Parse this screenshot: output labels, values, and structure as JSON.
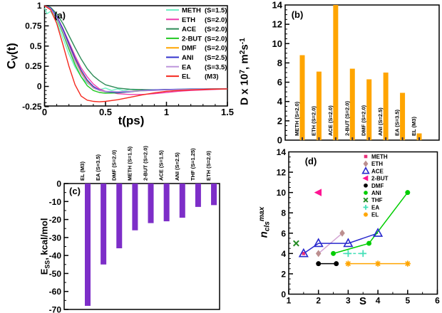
{
  "figure": {
    "background": "#ffffff",
    "frame_color": "#000000",
    "panel_letters": [
      "(a)",
      "(b)",
      "(c)",
      "(d)"
    ]
  },
  "chart_data": [
    {
      "id": "a",
      "type": "line",
      "label": "(a)",
      "xlabel": "t(ps)",
      "ylabel": "C_V(t)",
      "ylabel_parts": [
        {
          "t": "C"
        },
        {
          "t": "V",
          "sub": 1
        },
        {
          "t": "(t)"
        }
      ],
      "xlim": [
        0,
        1.5
      ],
      "ylim": [
        -0.25,
        1
      ],
      "xticks": [
        0,
        0.5,
        1,
        1.5
      ],
      "xtick_labels": [
        "0",
        "0.5",
        "1",
        "1.5"
      ],
      "yticks": [
        1,
        0.75,
        0.5,
        0.25,
        0,
        -0.25
      ],
      "ytick_labels": [
        "1",
        "0.75",
        "0.5",
        "0.25",
        "0",
        "-0.25"
      ],
      "legend_position": "top-right",
      "series": [
        {
          "name": "METH",
          "s_label": "(S=1.5)",
          "color": "#6FF0C4",
          "x": [
            0,
            0.02,
            0.05,
            0.08,
            0.1,
            0.13,
            0.16,
            0.2,
            0.25,
            0.3,
            0.35,
            0.4,
            0.45,
            0.5,
            0.55,
            0.6,
            0.65,
            0.7,
            0.75,
            0.8,
            0.85,
            0.9,
            1.0,
            1.1,
            1.2,
            1.35,
            1.5
          ],
          "y": [
            0.97,
            0.9,
            0.93,
            0.85,
            0.8,
            0.68,
            0.56,
            0.4,
            0.24,
            0.12,
            0.04,
            -0.01,
            -0.04,
            -0.02,
            -0.05,
            -0.03,
            -0.055,
            -0.035,
            -0.05,
            -0.04,
            -0.05,
            -0.045,
            -0.04,
            -0.035,
            -0.03,
            -0.03,
            -0.028
          ]
        },
        {
          "name": "ETH",
          "s_label": "(S=2.0)",
          "color": "#EE3FAE",
          "x": [
            0,
            0.05,
            0.1,
            0.15,
            0.2,
            0.25,
            0.3,
            0.35,
            0.4,
            0.45,
            0.5,
            0.6,
            0.7,
            0.8,
            0.9,
            1.0,
            1.1,
            1.2,
            1.35,
            1.5
          ],
          "y": [
            1,
            0.97,
            0.87,
            0.72,
            0.55,
            0.38,
            0.23,
            0.12,
            0.03,
            -0.03,
            -0.06,
            -0.09,
            -0.1,
            -0.1,
            -0.09,
            -0.075,
            -0.06,
            -0.05,
            -0.04,
            -0.032
          ]
        },
        {
          "name": "ACE",
          "s_label": "(S=2.0)",
          "color": "#2E8B57",
          "x": [
            0,
            0.05,
            0.1,
            0.15,
            0.2,
            0.25,
            0.3,
            0.35,
            0.4,
            0.45,
            0.5,
            0.6,
            0.7,
            0.8,
            0.9,
            1.0,
            1.1,
            1.2,
            1.35,
            1.5
          ],
          "y": [
            1,
            0.98,
            0.9,
            0.78,
            0.63,
            0.48,
            0.34,
            0.22,
            0.13,
            0.07,
            0.02,
            -0.02,
            -0.035,
            -0.04,
            -0.042,
            -0.04,
            -0.038,
            -0.035,
            -0.032,
            -0.03
          ]
        },
        {
          "name": "2-BUT",
          "s_label": "(S=2.0)",
          "color": "#21C821",
          "x": [
            0,
            0.05,
            0.1,
            0.15,
            0.2,
            0.25,
            0.3,
            0.35,
            0.4,
            0.45,
            0.5,
            0.6,
            0.7,
            0.8,
            0.9,
            1.0,
            1.1,
            1.2,
            1.35,
            1.5
          ],
          "y": [
            1,
            0.96,
            0.84,
            0.66,
            0.46,
            0.27,
            0.12,
            0.01,
            -0.05,
            -0.075,
            -0.085,
            -0.08,
            -0.065,
            -0.055,
            -0.048,
            -0.042,
            -0.038,
            -0.035,
            -0.032,
            -0.03
          ]
        },
        {
          "name": "DMF",
          "s_label": "(S=2.0)",
          "color": "#FFA500",
          "x": [
            0,
            0.05,
            0.1,
            0.15,
            0.2,
            0.25,
            0.3,
            0.35,
            0.4,
            0.45,
            0.5,
            0.6,
            0.7,
            0.8,
            0.9,
            1.0,
            1.1,
            1.2,
            1.35,
            1.5
          ],
          "y": [
            1,
            0.97,
            0.86,
            0.7,
            0.52,
            0.34,
            0.18,
            0.07,
            -0.01,
            -0.05,
            -0.065,
            -0.07,
            -0.06,
            -0.05,
            -0.045,
            -0.04,
            -0.037,
            -0.034,
            -0.031,
            -0.03
          ]
        },
        {
          "name": "ANI",
          "s_label": "(S=2.5)",
          "color": "#3333CC",
          "x": [
            0,
            0.05,
            0.1,
            0.15,
            0.2,
            0.25,
            0.3,
            0.35,
            0.4,
            0.45,
            0.5,
            0.6,
            0.7,
            0.8,
            0.9,
            1.0,
            1.1,
            1.2,
            1.35,
            1.5
          ],
          "y": [
            1,
            0.97,
            0.87,
            0.71,
            0.53,
            0.35,
            0.2,
            0.08,
            0,
            -0.045,
            -0.065,
            -0.075,
            -0.065,
            -0.05,
            -0.042,
            -0.038,
            -0.035,
            -0.033,
            -0.031,
            -0.03
          ]
        },
        {
          "name": "EA",
          "s_label": "(S=3.5)",
          "color": "#BD96DC",
          "x": [
            0,
            0.05,
            0.1,
            0.15,
            0.2,
            0.25,
            0.3,
            0.35,
            0.4,
            0.45,
            0.5,
            0.6,
            0.7,
            0.8,
            0.9,
            1.0,
            1.1,
            1.2,
            1.35,
            1.5
          ],
          "y": [
            1,
            0.96,
            0.85,
            0.68,
            0.49,
            0.31,
            0.16,
            0.05,
            -0.02,
            -0.05,
            -0.06,
            -0.065,
            -0.06,
            -0.055,
            -0.05,
            -0.045,
            -0.04,
            -0.037,
            -0.033,
            -0.03
          ]
        },
        {
          "name": "EL",
          "s_label": "(M3)",
          "color": "#F5281E",
          "x": [
            0,
            0.05,
            0.1,
            0.15,
            0.2,
            0.25,
            0.3,
            0.35,
            0.4,
            0.45,
            0.5,
            0.6,
            0.7,
            0.8,
            0.9,
            1.0,
            1.1,
            1.2,
            1.35,
            1.5
          ],
          "y": [
            1,
            0.95,
            0.78,
            0.52,
            0.25,
            0.02,
            -0.12,
            -0.17,
            -0.185,
            -0.19,
            -0.185,
            -0.165,
            -0.135,
            -0.105,
            -0.08,
            -0.06,
            -0.05,
            -0.042,
            -0.035,
            -0.03
          ]
        }
      ]
    },
    {
      "id": "b",
      "type": "bar",
      "label": "(b)",
      "ylabel": "D x 10^7, m^2 s^-1",
      "ylabel_parts": [
        {
          "t": "D x 10"
        },
        {
          "t": "7",
          "sup": 1
        },
        {
          "t": ", m"
        },
        {
          "t": "2",
          "sup": 1
        },
        {
          "t": "s"
        },
        {
          "t": "-1",
          "sup": 1
        }
      ],
      "ylim": [
        0,
        14
      ],
      "yticks": [
        0,
        2,
        4,
        6,
        8,
        10,
        12,
        14
      ],
      "bar_color": "#FFA500",
      "axis_tick_color": "#333355",
      "categories": [
        "METH (S=2.0)",
        "ETH (S=2.0)",
        "ACE (S=2.0)",
        "2-BUT (S=2.0)",
        "DMF (S=2.0)",
        "ANI (S=2.5)",
        "EA (S=3.5)",
        "EL (M3)"
      ],
      "values": [
        8.8,
        7.1,
        14,
        7.4,
        6.3,
        7.0,
        4.9,
        0.7
      ]
    },
    {
      "id": "c",
      "type": "bar",
      "label": "(c)",
      "ylabel": "E_SS, kcal/mol",
      "ylabel_parts": [
        {
          "t": "E"
        },
        {
          "t": "SS",
          "sub": 1
        },
        {
          "t": ", kcal/mol"
        }
      ],
      "ylim": [
        -70,
        0
      ],
      "yticks": [
        0,
        -10,
        -20,
        -30,
        -40,
        -50,
        -60,
        -70
      ],
      "bar_color": "#7D2EC8",
      "categories": [
        "EL (M3)",
        "EA (S=3.5)",
        "DMF (S=2.0)",
        "METH (S=1.5)",
        "2-BUT (S=2.0)",
        "ACE (S=1.5)",
        "ANI (S=2.5)",
        "THF (S=1.25)",
        "ETH (S=2.0)"
      ],
      "values": [
        -68,
        -45,
        -36,
        -26,
        -22,
        -21,
        -19,
        -13,
        -12
      ]
    },
    {
      "id": "d",
      "type": "scatter",
      "label": "(d)",
      "xlabel": "S",
      "ylabel": "n_cls^max",
      "ylabel_parts": [
        {
          "t": "n",
          "i": 1
        },
        {
          "t": "cls",
          "sub": 1,
          "i": 1
        },
        {
          "t": "max",
          "sup": 1,
          "i": 1
        }
      ],
      "xlim": [
        1,
        6
      ],
      "ylim": [
        0,
        14
      ],
      "xticks": [
        1,
        2,
        3,
        4,
        5,
        6
      ],
      "yticks": [
        0,
        2,
        4,
        6,
        8,
        10,
        12,
        14
      ],
      "legend_position": "top-right",
      "series": [
        {
          "name": "METH",
          "marker": "square",
          "color": "#E8317B",
          "points": [
            [
              1.5,
              4
            ]
          ]
        },
        {
          "name": "ETH",
          "marker": "diamond",
          "color": "#BC8F8F",
          "line_color": "#D3A4D3",
          "points": [
            [
              2,
              4
            ],
            [
              2.8,
              6
            ]
          ]
        },
        {
          "name": "ACE",
          "marker": "triangle-open",
          "color": "#2929CD",
          "points": [
            [
              1.5,
              4
            ],
            [
              2,
              5
            ],
            [
              3,
              5
            ],
            [
              4,
              6
            ]
          ]
        },
        {
          "name": "2-BUT",
          "marker": "triangle-left",
          "color": "#FF1493",
          "points": [
            [
              2,
              10
            ]
          ]
        },
        {
          "name": "DMF",
          "marker": "circle",
          "color": "#000000",
          "points": [
            [
              2,
              3
            ],
            [
              2.6,
              3
            ]
          ]
        },
        {
          "name": "ANI",
          "marker": "circle",
          "color": "#00CD00",
          "points": [
            [
              2.5,
              4
            ],
            [
              3.7,
              5
            ],
            [
              5,
              10
            ]
          ]
        },
        {
          "name": "THF",
          "marker": "x",
          "color": "#228B22",
          "points": [
            [
              1.25,
              5
            ]
          ]
        },
        {
          "name": "EA",
          "marker": "plus",
          "color": "#45E0B8",
          "dashed": true,
          "line_points": [
            [
              2.83,
              4
            ],
            [
              3.5,
              4
            ]
          ],
          "points": [
            [
              3,
              4
            ],
            [
              3.5,
              4
            ]
          ]
        },
        {
          "name": "EL",
          "marker": "asterisk",
          "color": "#FFA500",
          "points": [
            [
              3,
              3
            ],
            [
              4,
              3
            ],
            [
              5,
              3
            ]
          ]
        }
      ]
    }
  ]
}
